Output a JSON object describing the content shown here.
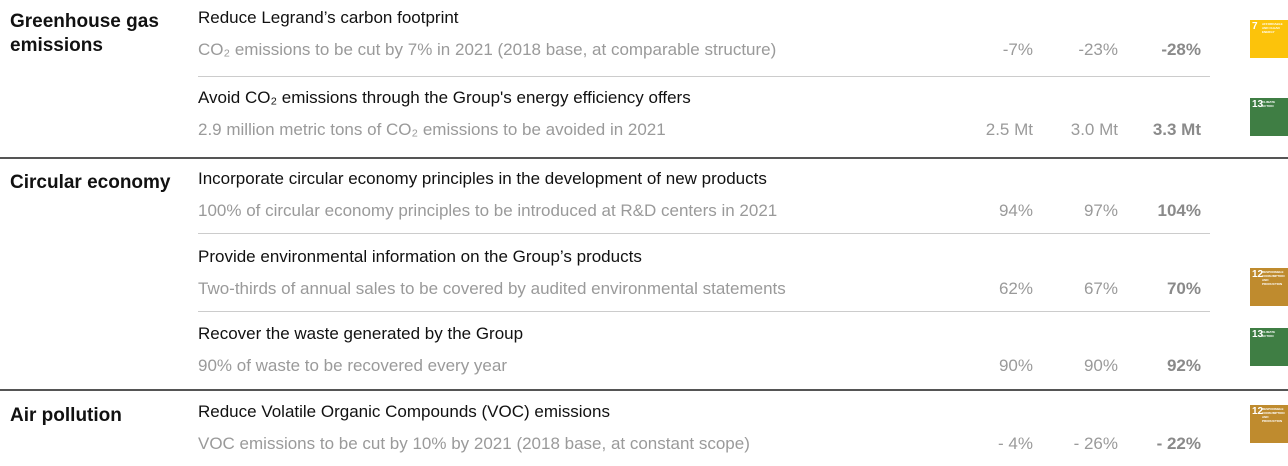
{
  "sections": [
    {
      "category": "Greenhouse gas emissions",
      "rows": [
        {
          "title": "Reduce Legrand’s carbon footprint",
          "description": "CO₂ emissions to be cut by 7% in 2021 (2018 base, at comparable structure)",
          "values": [
            "-7%",
            "-23%",
            "-28%"
          ]
        },
        {
          "title": "Avoid CO₂ emissions through the Group's energy efficiency offers",
          "description": "2.9 million metric tons of CO₂ emissions to be avoided in 2021",
          "values": [
            "2.5 Mt",
            "3.0 Mt",
            "3.3 Mt"
          ]
        }
      ]
    },
    {
      "category": "Circular economy",
      "rows": [
        {
          "title": "Incorporate circular economy principles in the development of new products",
          "description": "100% of circular economy principles to be introduced at R&D centers in 2021",
          "values": [
            "94%",
            "97%",
            "104%"
          ]
        },
        {
          "title": "Provide environmental information on the Group’s products",
          "description": "Two-thirds of annual sales to be covered by audited environmental statements",
          "values": [
            "62%",
            "67%",
            "70%"
          ]
        },
        {
          "title": "Recover the waste generated by the Group",
          "description": "90% of waste to be recovered every year",
          "values": [
            "90%",
            "90%",
            "92%"
          ]
        }
      ]
    },
    {
      "category": "Air pollution",
      "rows": [
        {
          "title": "Reduce Volatile Organic Compounds (VOC) emissions",
          "description": "VOC emissions to be cut by 10% by 2021 (2018 base, at constant scope)",
          "values": [
            "- 4%",
            "- 26%",
            "- 22%"
          ]
        }
      ]
    }
  ],
  "icons": [
    {
      "number": "7",
      "label": "AFFORDABLE AND CLEAN ENERGY"
    },
    {
      "number": "13",
      "label": "CLIMATE ACTION"
    },
    {
      "number": "12",
      "label": "RESPONSIBLE CONSUMPTION AND PRODUCTION"
    },
    {
      "number": "13",
      "label": "CLIMATE ACTION"
    },
    {
      "number": "12",
      "label": "RESPONSIBLE CONSUMPTION AND PRODUCTION"
    }
  ]
}
